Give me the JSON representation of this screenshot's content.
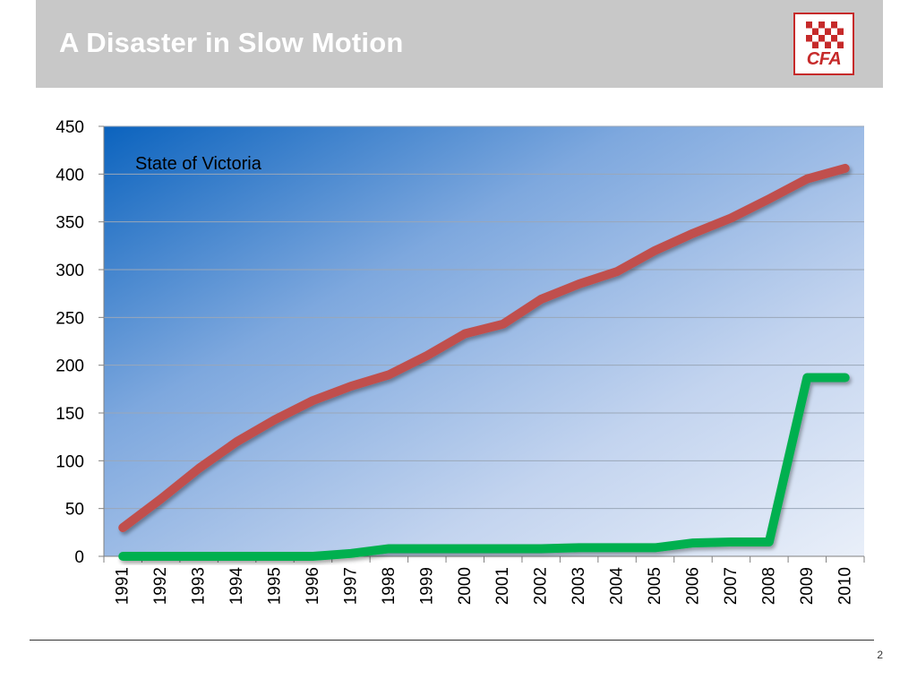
{
  "slide": {
    "title": "A Disaster in Slow Motion",
    "page_number": "2"
  },
  "logo": {
    "text": "CFA",
    "color": "#c62a2a"
  },
  "chart_data": {
    "type": "line",
    "annotation": "State of Victoria",
    "categories": [
      "1991",
      "1992",
      "1993",
      "1994",
      "1995",
      "1996",
      "1997",
      "1998",
      "1999",
      "2000",
      "2001",
      "2002",
      "2003",
      "2004",
      "2005",
      "2006",
      "2007",
      "2008",
      "2009",
      "2010"
    ],
    "series": [
      {
        "color": "#c0504d",
        "values": [
          30,
          60,
          92,
          120,
          143,
          163,
          178,
          190,
          210,
          233,
          243,
          269,
          285,
          298,
          320,
          338,
          354,
          374,
          395,
          406
        ]
      },
      {
        "color": "#00b050",
        "values": [
          0,
          0,
          0,
          0,
          0,
          0,
          3,
          8,
          8,
          8,
          8,
          8,
          9,
          9,
          9,
          14,
          15,
          15,
          187,
          187
        ]
      }
    ],
    "ylim": [
      0,
      450
    ],
    "yticks": [
      0,
      50,
      100,
      150,
      200,
      250,
      300,
      350,
      400,
      450
    ],
    "grid": true,
    "xlabel": "",
    "ylabel": ""
  }
}
